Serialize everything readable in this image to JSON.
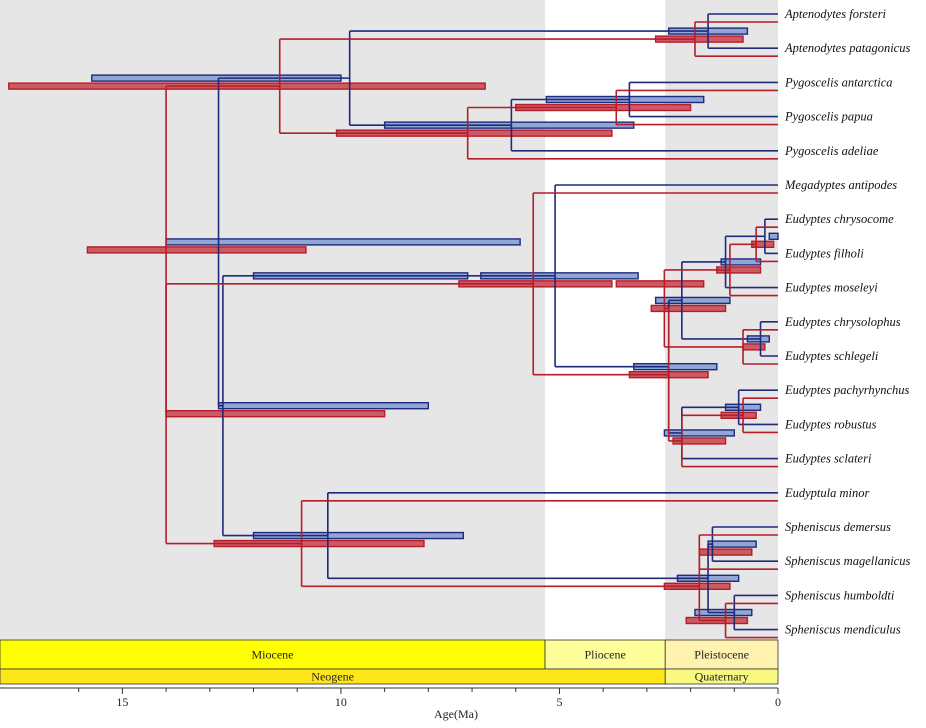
{
  "chart_data": {
    "type": "dated-phylogeny",
    "xlabel": "Age(Ma)",
    "xlim": [
      17.8,
      0
    ],
    "ticks": [
      15,
      10,
      5,
      0
    ],
    "minor_ticks": [
      16,
      14,
      13,
      12,
      11,
      9,
      8,
      7,
      6,
      4,
      3,
      2,
      1
    ],
    "series": [
      {
        "name": "",
        "color": "#1f2a7a",
        "hpd_fill": "#8fa6d6"
      },
      {
        "name": "",
        "color": "#b51d2a",
        "hpd_fill": "#cc5a62"
      }
    ],
    "taxa": [
      "Aptenodytes forsteri",
      "Aptenodytes patagonicus",
      "Pygoscelis antarctica",
      "Pygoscelis papua",
      "Pygoscelis adeliae",
      "Megadyptes antipodes",
      "Eudyptes chrysocome",
      "Eudyptes filholi",
      "Eudyptes moseleyi",
      "Eudyptes chrysolophus",
      "Eudyptes schlegeli",
      "Eudyptes pachyrhynchus",
      "Eudyptes robustus",
      "Eudyptes sclateri",
      "Eudyptula minor",
      "Spheniscus demersus",
      "Spheniscus magellanicus",
      "Spheniscus humboldti",
      "Spheniscus mendiculus"
    ],
    "nodes_blue": [
      {
        "age": 12.8,
        "ci": [
          14.0,
          5.9
        ]
      },
      {
        "age": 9.8,
        "ci": [
          15.7,
          10.0
        ]
      },
      {
        "age": 1.6,
        "ci": [
          2.5,
          0.7
        ]
      },
      {
        "age": 6.1,
        "ci": [
          9.0,
          3.3
        ]
      },
      {
        "age": 3.4,
        "ci": [
          5.3,
          1.7
        ]
      },
      {
        "age": 11.2,
        "ci": [
          12.0,
          7.1
        ]
      },
      {
        "age": 5.1,
        "ci": [
          6.8,
          3.2
        ]
      },
      {
        "age": 2.5,
        "ci": [
          3.3,
          1.4
        ]
      },
      {
        "age": 2.2,
        "ci": [
          2.8,
          1.1
        ]
      },
      {
        "age": 1.2,
        "ci": [
          1.3,
          0.4
        ]
      },
      {
        "age": 0.3,
        "ci": [
          0.2,
          0.0
        ]
      },
      {
        "age": 0.4,
        "ci": [
          0.7,
          0.2
        ]
      },
      {
        "age": 2.2,
        "ci": [
          2.6,
          1.0
        ]
      },
      {
        "age": 0.9,
        "ci": [
          1.2,
          0.4
        ]
      },
      {
        "age": 10.3,
        "ci": [
          12.0,
          7.2
        ]
      },
      {
        "age": 1.6,
        "ci": [
          2.3,
          0.9
        ]
      },
      {
        "age": 1.5,
        "ci": [
          1.6,
          0.5
        ]
      },
      {
        "age": 1.0,
        "ci": [
          1.9,
          0.6
        ]
      },
      {
        "age": 1.2,
        "ci": [
          1.3,
          0.6
        ]
      },
      {
        "age": 12.7,
        "ci": [
          12.8,
          8.0
        ]
      }
    ],
    "nodes_red": [
      {
        "age": 14.0,
        "ci": [
          15.8,
          10.8
        ]
      },
      {
        "age": 11.4,
        "ci": [
          17.6,
          6.7
        ]
      },
      {
        "age": 1.9,
        "ci": [
          2.8,
          0.8
        ]
      },
      {
        "age": 7.1,
        "ci": [
          10.1,
          3.8
        ]
      },
      {
        "age": 3.7,
        "ci": [
          6.0,
          2.0
        ]
      },
      {
        "age": 11.9,
        "ci": [
          7.3,
          3.8
        ]
      },
      {
        "age": 5.6,
        "ci": [
          3.7,
          1.7
        ]
      },
      {
        "age": 2.5,
        "ci": [
          3.4,
          1.6
        ]
      },
      {
        "age": 2.6,
        "ci": [
          2.9,
          1.2
        ]
      },
      {
        "age": 1.1,
        "ci": [
          1.4,
          0.4
        ]
      },
      {
        "age": 0.5,
        "ci": [
          0.6,
          0.1
        ]
      },
      {
        "age": 0.8,
        "ci": [
          0.8,
          0.3
        ]
      },
      {
        "age": 2.2,
        "ci": [
          2.4,
          1.2
        ]
      },
      {
        "age": 0.8,
        "ci": [
          1.3,
          0.5
        ]
      },
      {
        "age": 10.9,
        "ci": [
          12.9,
          8.1
        ]
      },
      {
        "age": 1.8,
        "ci": [
          2.6,
          1.1
        ]
      },
      {
        "age": 1.8,
        "ci": [
          1.8,
          0.6
        ]
      },
      {
        "age": 1.2,
        "ci": [
          2.1,
          0.7
        ]
      },
      {
        "age": 1.4,
        "ci": [
          1.4,
          0.7
        ]
      },
      {
        "age": 14.0,
        "ci": [
          14.0,
          9.0
        ]
      }
    ],
    "tree": [
      [
        "Aptenodytes forsteri",
        "Aptenodytes patagonicus"
      ],
      [
        [
          "Pygoscelis antarctica",
          "Pygoscelis papua"
        ],
        "Pygoscelis adeliae"
      ],
      [
        "Megadyptes antipodes",
        "Eudyptes (7 taxa)"
      ],
      [
        "Eudyptula minor",
        "Spheniscus (4 taxa)"
      ]
    ]
  },
  "timescale": {
    "epochs": [
      {
        "name": "Miocene",
        "from": 17.8,
        "to": 5.33
      },
      {
        "name": "Pliocene",
        "from": 5.33,
        "to": 2.58
      },
      {
        "name": "Pleistocene",
        "from": 2.58,
        "to": 0
      }
    ],
    "periods": [
      {
        "name": "Neogene",
        "from": 17.8,
        "to": 2.58
      },
      {
        "name": "Quaternary",
        "from": 2.58,
        "to": 0
      }
    ],
    "colors": {
      "miocene": "#ffff00",
      "pliocene": "#ffff99",
      "pleistocene": "#fff2ae",
      "neogene": "#ffe619",
      "quaternary": "#f9f97f",
      "shade": "#e6e6e6"
    }
  }
}
